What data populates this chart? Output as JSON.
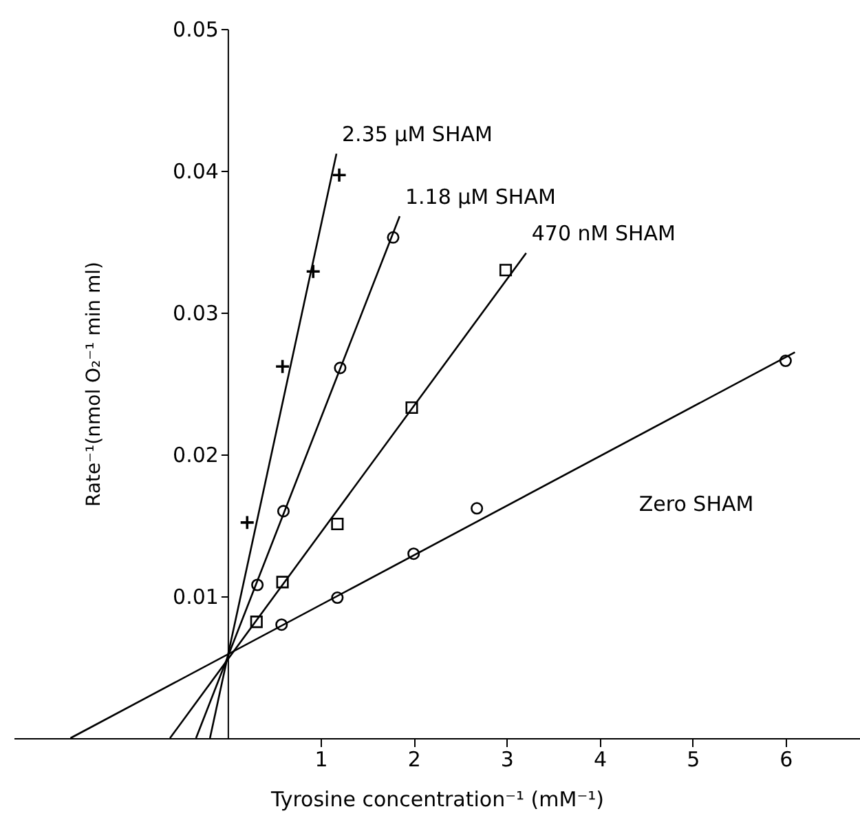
{
  "chart_data": {
    "type": "scatter",
    "xlabel": "Tyrosine concentration⁻¹ (mM⁻¹)",
    "ylabel": "Rate⁻¹(nmol O₂⁻¹ min ml)",
    "xlim": [
      -2.3,
      6.8
    ],
    "ylim": [
      0,
      0.05
    ],
    "xticks": [
      1,
      2,
      3,
      4,
      5,
      6
    ],
    "yticks": [
      0.01,
      0.02,
      0.03,
      0.04,
      0.05
    ],
    "grid": false,
    "series": [
      {
        "marker": "cross",
        "color": "#000000",
        "x": [
          0.21,
          0.59,
          0.92,
          1.2
        ],
        "values": [
          0.0152,
          0.0262,
          0.0329,
          0.0397
        ]
      },
      {
        "marker": "circle",
        "color": "#000000",
        "x": [
          0.32,
          0.6,
          1.21,
          1.78
        ],
        "values": [
          0.0108,
          0.016,
          0.0261,
          0.0353
        ]
      },
      {
        "marker": "square",
        "color": "#000000",
        "x": [
          0.31,
          0.59,
          1.18,
          1.98,
          2.99
        ],
        "values": [
          0.0082,
          0.011,
          0.0151,
          0.0233,
          0.033
        ]
      },
      {
        "marker": "circle",
        "color": "#000000",
        "x": [
          0.58,
          1.18,
          2.0,
          2.68,
          6.0
        ],
        "values": [
          0.008,
          0.0099,
          0.013,
          0.0162,
          0.0266
        ]
      },
      {
        "name": "2.35 µM SHAM",
        "type": "line",
        "marker": "none",
        "line_style": "solid",
        "color": "#000000",
        "x": [
          -0.19,
          1.17
        ],
        "values": [
          0,
          0.0412
        ]
      },
      {
        "name": "1.18 µM SHAM",
        "type": "line",
        "marker": "none",
        "line_style": "solid",
        "color": "#000000",
        "x": [
          -0.34,
          1.85
        ],
        "values": [
          0,
          0.0368
        ]
      },
      {
        "name": "470 nM SHAM",
        "type": "line",
        "marker": "none",
        "line_style": "solid",
        "color": "#000000",
        "x": [
          -0.62,
          3.21
        ],
        "values": [
          0,
          0.0342
        ]
      },
      {
        "name": "Zero SHAM",
        "type": "line",
        "marker": "none",
        "line_style": "solid",
        "color": "#000000",
        "x": [
          -1.69,
          6.1
        ],
        "values": [
          0,
          0.0272
        ]
      }
    ]
  }
}
